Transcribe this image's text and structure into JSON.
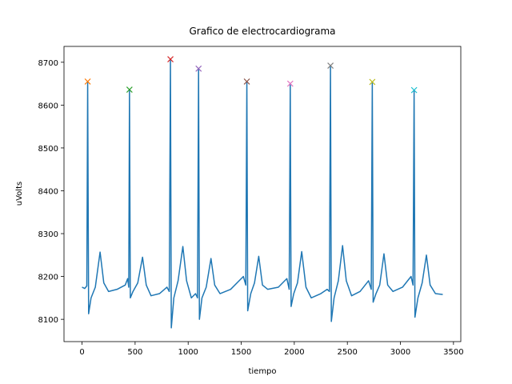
{
  "chart_data": {
    "type": "line",
    "title": "Grafico de electrocardiograma",
    "x_label": "tiempo",
    "y_label": "uVolts",
    "xlim": [
      -170,
      3569
    ],
    "ylim": [
      8048,
      8737
    ],
    "xticks": [
      0,
      500,
      1000,
      1500,
      2000,
      2500,
      3000,
      3500
    ],
    "yticks": [
      8100,
      8200,
      8300,
      8400,
      8500,
      8600,
      8700
    ],
    "series": [
      {
        "color": "#1f77b4",
        "x": [
          0,
          25,
          45,
          53,
          62,
          85,
          125,
          170,
          205,
          250,
          330,
          407,
          430,
          440,
          447,
          455,
          480,
          525,
          570,
          605,
          650,
          730,
          800,
          822,
          833,
          841,
          865,
          905,
          950,
          985,
          1030,
          1070,
          1088,
          1098,
          1106,
          1130,
          1170,
          1215,
          1250,
          1300,
          1400,
          1520,
          1543,
          1553,
          1561,
          1590,
          1625,
          1665,
          1700,
          1750,
          1850,
          1930,
          1952,
          1962,
          1970,
          1995,
          2030,
          2070,
          2110,
          2160,
          2250,
          2310,
          2331,
          2341,
          2349,
          2375,
          2415,
          2455,
          2490,
          2540,
          2620,
          2700,
          2725,
          2735,
          2743,
          2770,
          2805,
          2845,
          2880,
          2930,
          3020,
          3100,
          3119,
          3129,
          3137,
          3165,
          3205,
          3245,
          3280,
          3330,
          3399
        ],
        "values": [
          8175,
          8172,
          8178,
          8655,
          8113,
          8150,
          8175,
          8257,
          8185,
          8165,
          8170,
          8180,
          8195,
          8175,
          8636,
          8150,
          8165,
          8185,
          8245,
          8180,
          8155,
          8160,
          8175,
          8165,
          8707,
          8080,
          8150,
          8190,
          8270,
          8190,
          8150,
          8160,
          8150,
          8685,
          8100,
          8150,
          8175,
          8242,
          8180,
          8160,
          8170,
          8200,
          8180,
          8655,
          8120,
          8160,
          8185,
          8247,
          8180,
          8170,
          8175,
          8195,
          8170,
          8650,
          8130,
          8160,
          8185,
          8258,
          8175,
          8150,
          8160,
          8170,
          8165,
          8692,
          8095,
          8150,
          8190,
          8272,
          8190,
          8155,
          8165,
          8190,
          8170,
          8654,
          8140,
          8160,
          8180,
          8253,
          8180,
          8165,
          8175,
          8200,
          8180,
          8635,
          8105,
          8150,
          8185,
          8250,
          8180,
          8160,
          8158
        ]
      },
      {
        "color": "#ff7f0e",
        "marker": "x",
        "x": [
          53
        ],
        "values": [
          8655
        ]
      },
      {
        "color": "#2ca02c",
        "marker": "x",
        "x": [
          447
        ],
        "values": [
          8636
        ]
      },
      {
        "color": "#d62728",
        "marker": "x",
        "x": [
          833
        ],
        "values": [
          8707
        ]
      },
      {
        "color": "#9467bd",
        "marker": "x",
        "x": [
          1098
        ],
        "values": [
          8685
        ]
      },
      {
        "color": "#8c564b",
        "marker": "x",
        "x": [
          1553
        ],
        "values": [
          8655
        ]
      },
      {
        "color": "#e377c2",
        "marker": "x",
        "x": [
          1962
        ],
        "values": [
          8650
        ]
      },
      {
        "color": "#7f7f7f",
        "marker": "x",
        "x": [
          2341
        ],
        "values": [
          8692
        ]
      },
      {
        "color": "#bcbd22",
        "marker": "x",
        "x": [
          2735
        ],
        "values": [
          8654
        ]
      },
      {
        "color": "#17becf",
        "marker": "x",
        "x": [
          3129
        ],
        "values": [
          8635
        ]
      }
    ]
  }
}
